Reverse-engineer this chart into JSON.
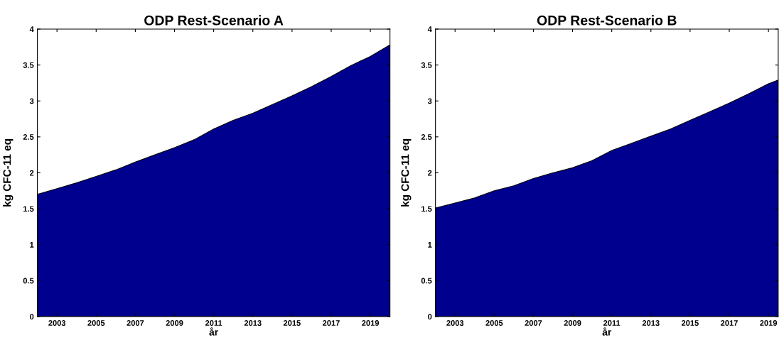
{
  "chart_data": [
    {
      "type": "area",
      "title": "ODP Rest-Scenario A",
      "xlabel": "år",
      "ylabel": "kg CFC-11 eq",
      "x": [
        2002,
        2003,
        2004,
        2005,
        2006,
        2007,
        2008,
        2009,
        2010,
        2011,
        2012,
        2013,
        2014,
        2015,
        2016,
        2017,
        2018,
        2019,
        2020
      ],
      "series": [
        {
          "color": "#00008f",
          "values": [
            1.7,
            1.78,
            1.86,
            1.95,
            2.04,
            2.15,
            2.25,
            2.35,
            2.46,
            2.61,
            2.73,
            2.83,
            2.95,
            3.07,
            3.2,
            3.34,
            3.49,
            3.62,
            3.78
          ]
        }
      ],
      "xlim": [
        2002,
        2020
      ],
      "xticks": [
        2003,
        2005,
        2007,
        2009,
        2011,
        2013,
        2015,
        2017,
        2019
      ],
      "ylim": [
        0,
        4
      ],
      "yticks": [
        0,
        0.5,
        1,
        1.5,
        2,
        2.5,
        3,
        3.5,
        4
      ]
    },
    {
      "type": "area",
      "title": "ODP Rest-Scenario B",
      "xlabel": "år",
      "ylabel": "kg CFC-11 eq",
      "x": [
        2002,
        2003,
        2004,
        2005,
        2006,
        2007,
        2008,
        2009,
        2010,
        2011,
        2012,
        2013,
        2014,
        2015,
        2016,
        2017,
        2018,
        2019,
        2019.5
      ],
      "series": [
        {
          "color": "#00008f",
          "values": [
            1.51,
            1.58,
            1.65,
            1.75,
            1.82,
            1.92,
            2.0,
            2.07,
            2.17,
            2.31,
            2.41,
            2.51,
            2.61,
            2.73,
            2.85,
            2.97,
            3.1,
            3.24,
            3.29
          ]
        }
      ],
      "xlim": [
        2002,
        2019.5
      ],
      "xticks": [
        2003,
        2005,
        2007,
        2009,
        2011,
        2013,
        2015,
        2017,
        2019
      ],
      "ylim": [
        0,
        4
      ],
      "yticks": [
        0,
        0.5,
        1,
        1.5,
        2,
        2.5,
        3,
        3.5,
        4
      ]
    }
  ]
}
